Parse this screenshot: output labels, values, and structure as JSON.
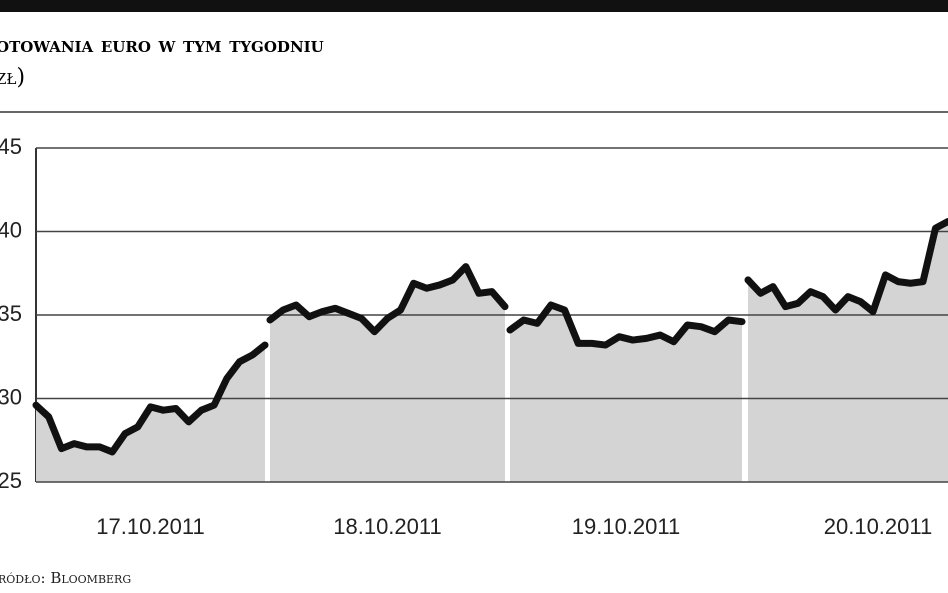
{
  "chart_data": {
    "type": "line",
    "title": "otowania euro w tym tygodniu",
    "subtitle": "zł)",
    "source": "ródło: Bloomberg",
    "categories": [
      "17.10.2011",
      "18.10.2011",
      "19.10.2011",
      "20.10.2011"
    ],
    "values": [
      [
        29.6,
        28.9,
        27.0,
        27.3,
        27.1,
        27.1,
        26.8,
        27.9,
        28.3,
        29.5,
        29.3,
        29.4,
        28.6,
        29.3,
        29.6,
        31.2,
        32.2,
        32.6,
        33.2
      ],
      [
        34.7,
        35.3,
        35.6,
        34.9,
        35.2,
        35.4,
        35.1,
        34.8,
        34.0,
        34.8,
        35.3,
        36.9,
        36.6,
        36.8,
        37.1,
        37.9,
        36.3,
        36.4,
        35.5
      ],
      [
        34.1,
        34.7,
        34.5,
        35.6,
        35.3,
        33.3,
        33.3,
        33.2,
        33.7,
        33.5,
        33.6,
        33.8,
        33.4,
        34.4,
        34.3,
        34.0,
        34.7,
        34.6
      ],
      [
        37.1,
        36.3,
        36.7,
        35.5,
        35.7,
        36.4,
        36.1,
        35.3,
        36.1,
        35.8,
        35.2,
        37.4,
        37.0,
        36.9,
        37.0,
        40.2,
        40.6
      ]
    ],
    "color": "#111111",
    "area_color": "#d4d4d4",
    "ylim": [
      25,
      45
    ],
    "yticks": [
      25,
      30,
      35,
      40,
      45
    ],
    "grid": true
  }
}
